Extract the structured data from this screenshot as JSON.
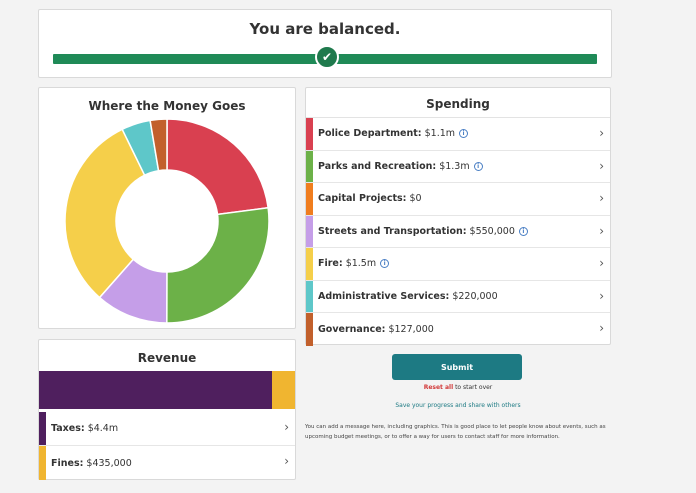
{
  "balance": {
    "title": "You are balanced.",
    "check_icon": "check-icon",
    "bar_color": "#1f8a57"
  },
  "money": {
    "title": "Where the Money Goes"
  },
  "chart_data": {
    "type": "pie",
    "donut": true,
    "categories": [
      "Police Department",
      "Parks and Recreation",
      "Capital Projects",
      "Streets and Transportation",
      "Fire",
      "Administrative Services",
      "Governance"
    ],
    "values": [
      1100000,
      1300000,
      0,
      550000,
      1500000,
      220000,
      127000
    ],
    "colors": [
      "#d94050",
      "#6cb148",
      "#f07d1e",
      "#c59ee8",
      "#f5cf4a",
      "#5ec7c9",
      "#c2602c"
    ]
  },
  "spending": {
    "title": "Spending",
    "items": [
      {
        "label": "Police Department:",
        "value": "$1.1m",
        "info": true,
        "color": "#d94050"
      },
      {
        "label": "Parks and Recreation:",
        "value": "$1.3m",
        "info": true,
        "color": "#6cb148"
      },
      {
        "label": "Capital Projects:",
        "value": "$0",
        "info": false,
        "color": "#f07d1e"
      },
      {
        "label": "Streets and Transportation:",
        "value": "$550,000",
        "info": true,
        "color": "#c59ee8"
      },
      {
        "label": "Fire:",
        "value": "$1.5m",
        "info": true,
        "color": "#f5cf4a"
      },
      {
        "label": "Administrative Services:",
        "value": "$220,000",
        "info": false,
        "color": "#5ec7c9"
      },
      {
        "label": "Governance:",
        "value": "$127,000",
        "info": false,
        "color": "#c2602c"
      }
    ]
  },
  "revenue": {
    "title": "Revenue",
    "items": [
      {
        "label": "Taxes:",
        "value": "$4.4m",
        "color": "#4f1f5e",
        "amount": 4400000
      },
      {
        "label": "Fines:",
        "value": "$435,000",
        "color": "#f0b530",
        "amount": 435000
      }
    ]
  },
  "actions": {
    "submit": "Submit",
    "reset_link": "Reset all",
    "reset_suffix": " to start over",
    "save": "Save your progress and share with others",
    "message": "You can add a message here, including graphics. This is good place to let people know about events, such as upcoming budget meetings, or to offer a way for users to contact staff for more information."
  }
}
